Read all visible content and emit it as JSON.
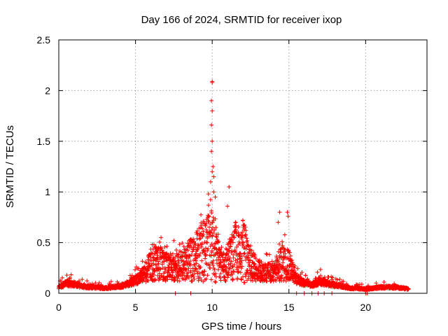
{
  "chart_data": {
    "type": "scatter",
    "title": "Day 166 of 2024, SRMTID for receiver ixop",
    "xlabel": "GPS time / hours",
    "ylabel": "SRMTID / TECUs",
    "xlim": [
      0,
      24
    ],
    "ylim": [
      0,
      2.5
    ],
    "grid": true,
    "x_ticks": [
      0,
      5,
      10,
      15,
      20
    ],
    "x_tick_labels": [
      "0",
      "5",
      "10",
      "15",
      "20"
    ],
    "y_ticks": [
      0,
      0.5,
      1,
      1.5,
      2,
      2.5
    ],
    "y_tick_labels": [
      "0",
      "0.5",
      "1",
      "1.5",
      "2",
      "2.5"
    ],
    "marker": "+",
    "marker_color": "#ff0000",
    "series": [
      {
        "name": "SRMTID",
        "profile_x": [
          0,
          0.5,
          1,
          1.5,
          2,
          2.5,
          3,
          3.5,
          4,
          4.5,
          5,
          5.5,
          6,
          6.5,
          7,
          7.5,
          8,
          8.5,
          9,
          9.5,
          9.9,
          10.3,
          10.7,
          11,
          11.5,
          12,
          12.5,
          13,
          13.5,
          14,
          14.5,
          15,
          15.5,
          16,
          16.5,
          17,
          17.5,
          18,
          18.5,
          19,
          19.5,
          20,
          20.5,
          21,
          21.5,
          22,
          22.5,
          22.8
        ],
        "profile_y": [
          0.06,
          0.1,
          0.09,
          0.07,
          0.06,
          0.06,
          0.05,
          0.06,
          0.07,
          0.09,
          0.13,
          0.18,
          0.28,
          0.3,
          0.26,
          0.24,
          0.28,
          0.32,
          0.36,
          0.42,
          0.55,
          0.38,
          0.26,
          0.3,
          0.4,
          0.42,
          0.3,
          0.22,
          0.2,
          0.22,
          0.32,
          0.28,
          0.14,
          0.1,
          0.08,
          0.12,
          0.1,
          0.08,
          0.07,
          0.05,
          0.05,
          0.04,
          0.05,
          0.06,
          0.06,
          0.06,
          0.05,
          0.04
        ],
        "peaks": [
          {
            "x": 10.0,
            "y": 2.09
          },
          {
            "x": 10.0,
            "y": 2.08
          },
          {
            "x": 9.95,
            "y": 1.9
          },
          {
            "x": 10.0,
            "y": 1.8
          },
          {
            "x": 9.95,
            "y": 1.66
          },
          {
            "x": 10.0,
            "y": 1.5
          },
          {
            "x": 9.95,
            "y": 1.4
          },
          {
            "x": 10.05,
            "y": 1.25
          },
          {
            "x": 10.0,
            "y": 1.2
          },
          {
            "x": 10.1,
            "y": 1.15
          },
          {
            "x": 9.9,
            "y": 1.1
          },
          {
            "x": 11.1,
            "y": 1.05
          },
          {
            "x": 10.1,
            "y": 1.0
          },
          {
            "x": 9.75,
            "y": 0.98
          },
          {
            "x": 10.2,
            "y": 0.95
          },
          {
            "x": 11.0,
            "y": 0.86
          },
          {
            "x": 14.4,
            "y": 0.8
          },
          {
            "x": 14.9,
            "y": 0.8
          },
          {
            "x": 14.95,
            "y": 0.76
          },
          {
            "x": 12.0,
            "y": 0.72
          },
          {
            "x": 14.3,
            "y": 0.7
          },
          {
            "x": 11.5,
            "y": 0.65
          },
          {
            "x": 12.2,
            "y": 0.62
          },
          {
            "x": 7.5,
            "y": 0.52
          },
          {
            "x": 6.2,
            "y": 0.48
          }
        ],
        "zero_points_x": [
          7.6,
          8.6,
          15.5,
          16.0,
          16.5,
          16.9,
          17.3,
          17.8,
          20.0,
          20.1
        ]
      }
    ]
  }
}
